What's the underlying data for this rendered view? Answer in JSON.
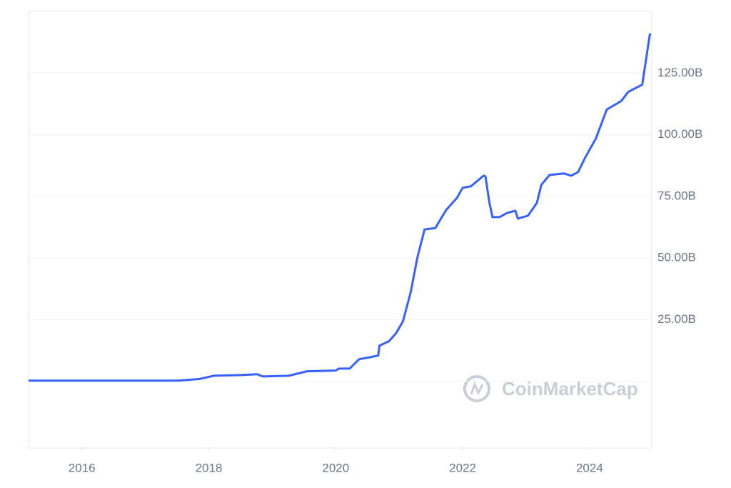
{
  "chart_data": {
    "type": "line",
    "x": [
      2015.16,
      2017.52,
      2017.86,
      2018.08,
      2018.53,
      2018.76,
      2018.85,
      2019.26,
      2019.55,
      2020.0,
      2020.05,
      2020.22,
      2020.37,
      2020.56,
      2020.67,
      2020.69,
      2020.84,
      2020.95,
      2021.06,
      2021.18,
      2021.29,
      2021.4,
      2021.57,
      2021.74,
      2021.91,
      2022.0,
      2022.13,
      2022.33,
      2022.36,
      2022.42,
      2022.47,
      2022.58,
      2022.7,
      2022.83,
      2022.87,
      2023.03,
      2023.17,
      2023.24,
      2023.37,
      2023.6,
      2023.71,
      2023.82,
      2023.93,
      2024.1,
      2024.27,
      2024.5,
      2024.61,
      2024.83,
      2024.89,
      2024.95,
      2024.97
    ],
    "series": [
      {
        "color": "#3861fb",
        "values": [
          0.3,
          0.3,
          1,
          2.3,
          2.6,
          2.9,
          2.0,
          2.3,
          4.1,
          4.4,
          5.2,
          5.2,
          9.0,
          9.9,
          10.5,
          14.5,
          16.3,
          19.5,
          24.4,
          36,
          50.6,
          61.6,
          62.2,
          69.5,
          74.4,
          78.5,
          79.1,
          83.4,
          83.1,
          72.7,
          66.6,
          66.6,
          68.3,
          69.2,
          66,
          67.2,
          72.4,
          79.7,
          83.7,
          84.3,
          83.4,
          84.9,
          90.7,
          98.5,
          110.2,
          113.7,
          117.4,
          120.3,
          130.5,
          140.7,
          140.7
        ]
      }
    ],
    "xlim": [
      2015.16,
      2024.98
    ],
    "xticks": [
      2016,
      2018,
      2020,
      2022,
      2024
    ],
    "ylim": [
      -27,
      150
    ],
    "yticks": [
      {
        "value": 25,
        "label": "25.00B"
      },
      {
        "value": 50,
        "label": "50.00B"
      },
      {
        "value": 75,
        "label": "75.00B"
      },
      {
        "value": 100,
        "label": "100.00B"
      },
      {
        "value": 125,
        "label": "125.00B"
      }
    ],
    "grid": true,
    "watermark": "CoinMarketCap"
  }
}
